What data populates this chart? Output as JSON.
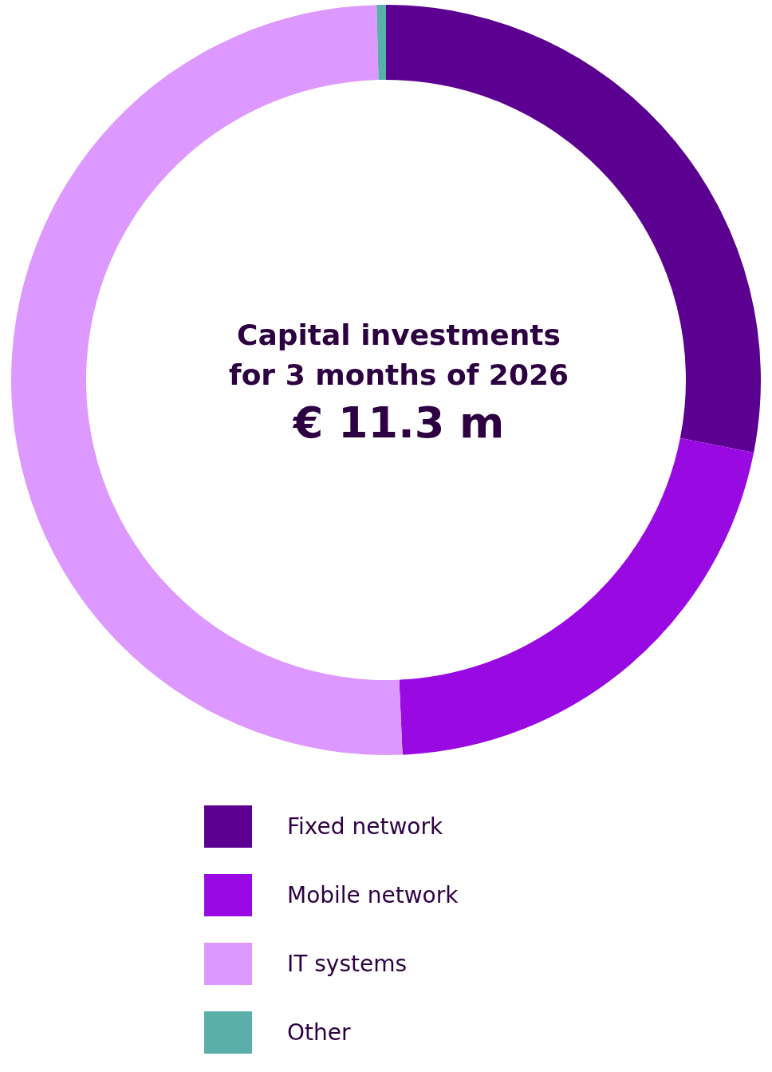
{
  "chart_data": {
    "type": "donut",
    "title": "Capital investments\nfor 3 months of 2026",
    "annotations": [
      "€ 11.3 m"
    ],
    "categories": [
      "Fixed network",
      "Mobile network",
      "IT systems",
      "Other"
    ],
    "values": [
      28.1,
      21.2,
      50.3,
      0.4
    ],
    "colors": [
      "#5c0091",
      "#990ae3",
      "#dd99ff",
      "#5aafaa"
    ],
    "legend": "bottom"
  }
}
